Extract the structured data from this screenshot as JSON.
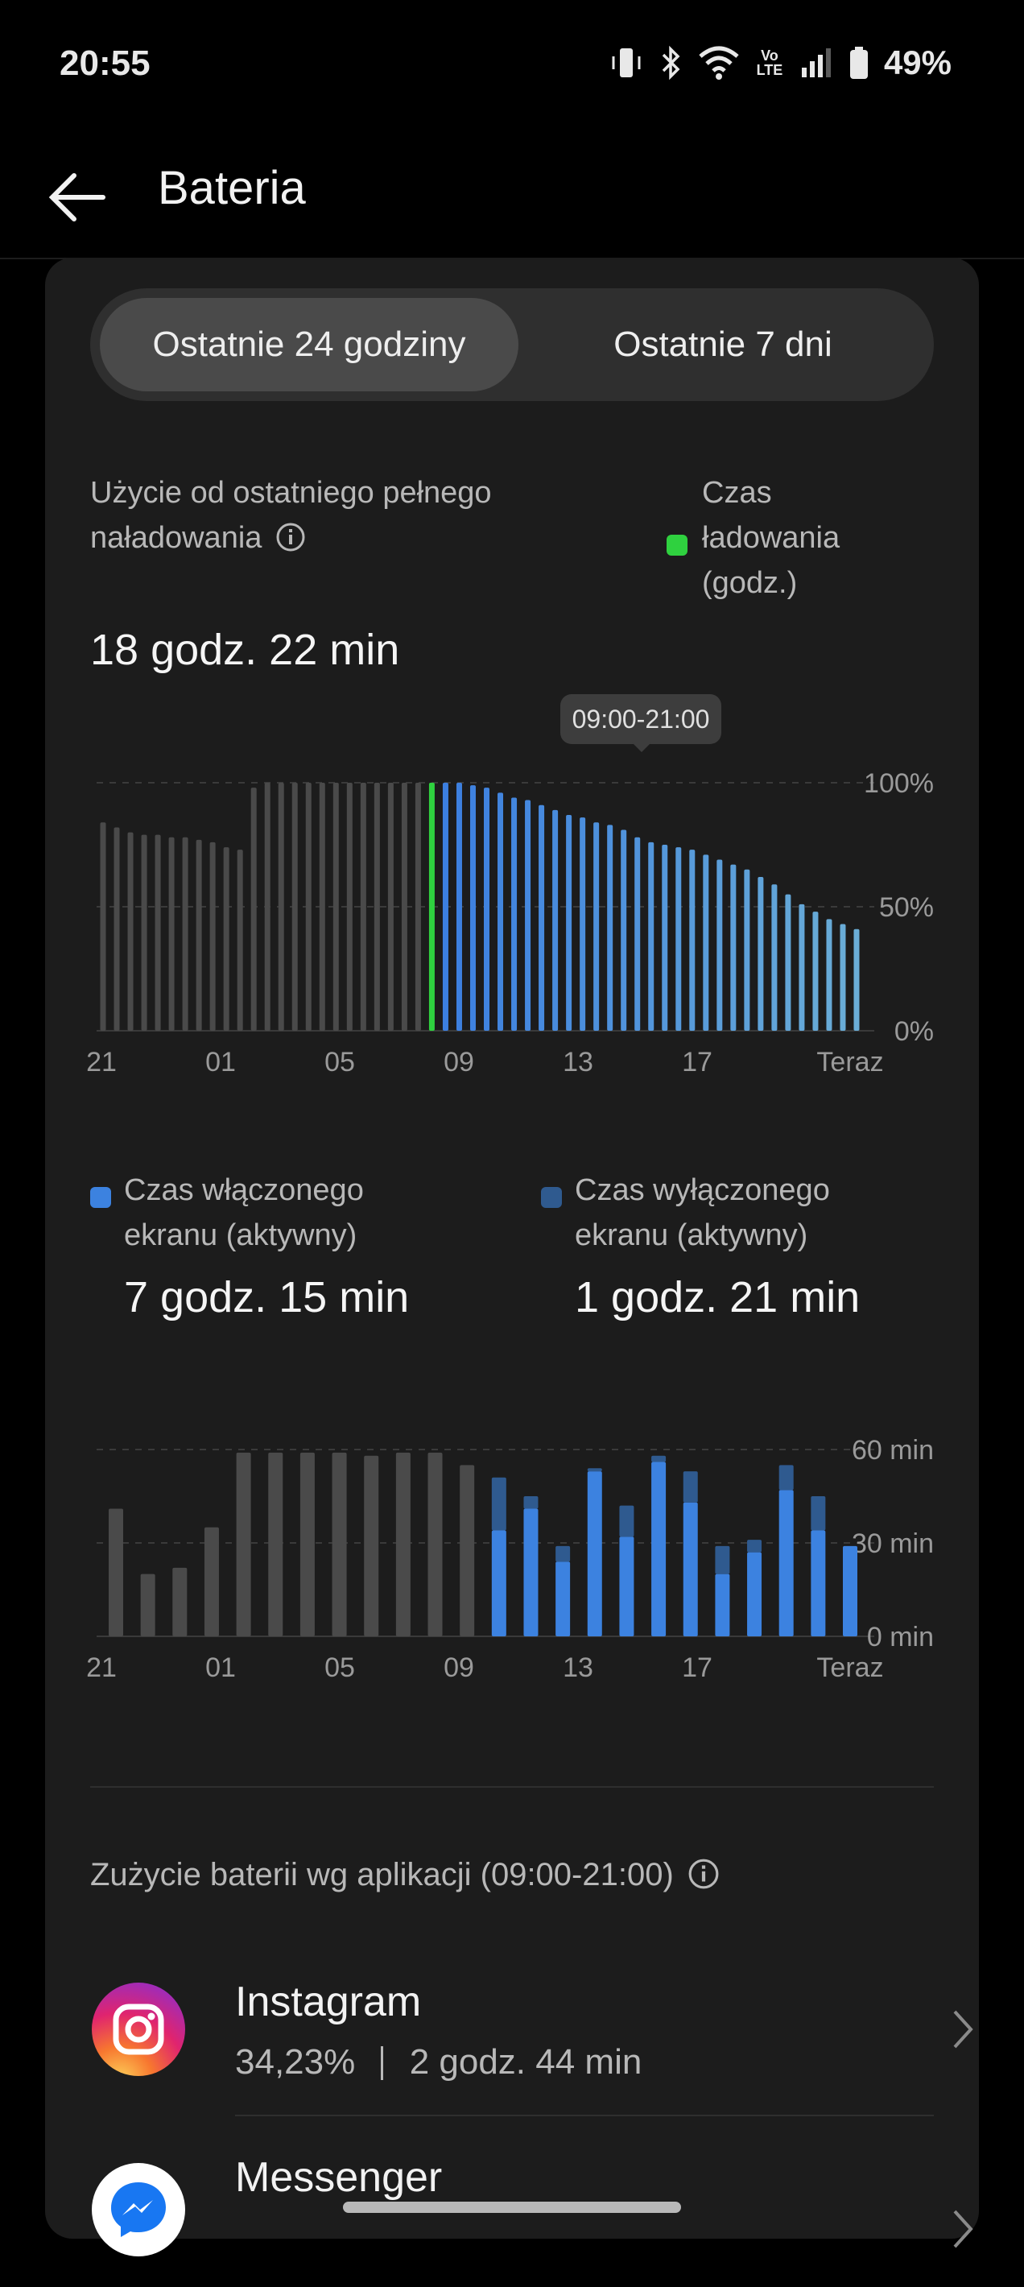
{
  "status_bar": {
    "time": "20:55",
    "battery_percent": "49%",
    "icons": [
      "vibrate-icon",
      "bluetooth-icon",
      "wifi-icon",
      "volte-icon",
      "signal-icon",
      "battery-icon"
    ],
    "volte_label": "Vo LTE"
  },
  "app_bar": {
    "title": "Bateria"
  },
  "segmented": {
    "option1": "Ostatnie 24 godziny",
    "option2": "Ostatnie 7 dni",
    "selected": "Ostatnie 24 godziny"
  },
  "usage": {
    "label": "Użycie od ostatniego pełnego naładowania",
    "value": "18 godz. 22 min"
  },
  "legend_charging": {
    "label": "Czas ładowania (godz.)",
    "color": "#2fd13f"
  },
  "tooltip": "09:00-21:00",
  "battery_chart": {
    "type": "bar",
    "y_ticks": [
      "100%",
      "50%",
      "0%"
    ],
    "x_ticks": [
      "21",
      "01",
      "05",
      "09",
      "13",
      "17",
      "Teraz"
    ],
    "values": [
      84,
      82,
      80,
      79,
      79,
      78,
      78,
      77,
      76,
      74,
      73,
      98,
      100,
      100,
      100,
      100,
      100,
      100,
      100,
      100,
      100,
      100,
      100,
      100,
      100,
      100,
      100,
      99,
      98,
      96,
      94,
      93,
      91,
      89,
      87,
      86,
      84,
      83,
      81,
      78,
      76,
      75,
      74,
      73,
      71,
      69,
      67,
      65,
      62,
      59,
      55,
      51,
      48,
      45,
      43,
      41
    ],
    "colors": {
      "past": "#4a4a4a",
      "charging": "#2fd13f",
      "active": "#3c82e0"
    }
  },
  "screen_stats": {
    "on_label": "Czas włączonego ekranu (aktywny)",
    "on_value": "7 godz. 15 min",
    "on_color": "#3c82e0",
    "off_label": "Czas wyłączonego ekranu (aktywny)",
    "off_value": "1 godz. 21 min",
    "off_color": "#2f5a8f"
  },
  "screen_chart": {
    "type": "bar",
    "y_ticks": [
      "60 min",
      "30 min",
      "0 min"
    ],
    "x_ticks": [
      "21",
      "01",
      "05",
      "09",
      "13",
      "17",
      "Teraz"
    ],
    "on": [
      41,
      20,
      22,
      35,
      59,
      59,
      59,
      59,
      58,
      59,
      59,
      55,
      34,
      41,
      24,
      53,
      32,
      56,
      43,
      20,
      27,
      47,
      34,
      29
    ],
    "off": [
      0,
      0,
      0,
      0,
      0,
      0,
      0,
      0,
      0,
      0,
      0,
      0,
      17,
      4,
      5,
      1,
      10,
      2,
      10,
      9,
      4,
      8,
      11,
      0
    ],
    "past_count": 12
  },
  "app_usage": {
    "header": "Zużycie baterii wg aplikacji (09:00-21:00)",
    "apps": [
      {
        "name": "Instagram",
        "percent": "34,23%",
        "time": "2 godz. 44 min"
      },
      {
        "name": "Messenger"
      }
    ]
  }
}
